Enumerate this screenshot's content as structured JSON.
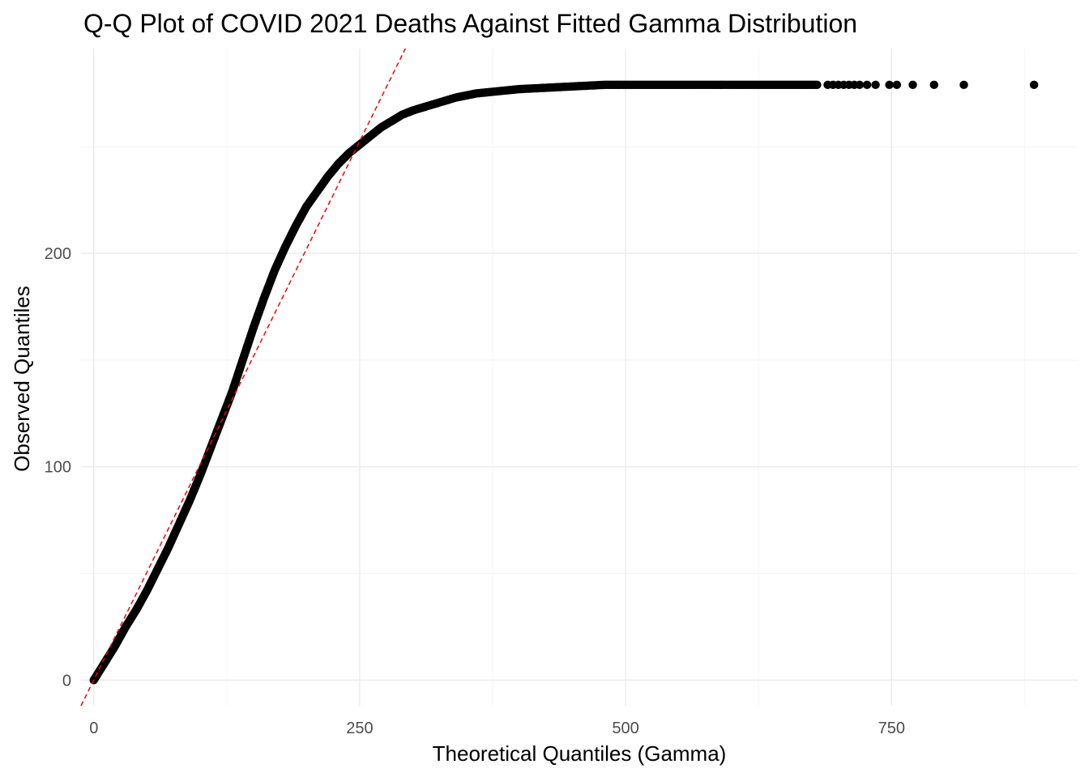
{
  "chart_data": {
    "type": "scatter",
    "title": "Q-Q Plot of COVID 2021 Deaths Against Fitted Gamma Distribution",
    "xlabel": "Theoretical Quantiles (Gamma)",
    "ylabel": "Observed Quantiles",
    "xlim": [
      -12,
      925
    ],
    "ylim": [
      -12,
      296
    ],
    "x_ticks": [
      0,
      250,
      500,
      750
    ],
    "x_tick_labels": [
      "0",
      "250",
      "500",
      "750"
    ],
    "x_minor_ticks": [
      125,
      375,
      625,
      875
    ],
    "y_ticks": [
      0,
      100,
      200
    ],
    "y_tick_labels": [
      "0",
      "100",
      "200"
    ],
    "y_minor_ticks": [
      50,
      150,
      250
    ],
    "grid": true,
    "legend": "none",
    "theme": "minimal",
    "series": [
      {
        "kind": "points",
        "color": "#000000",
        "curve": [
          [
            0,
            0
          ],
          [
            10,
            8
          ],
          [
            20,
            16
          ],
          [
            30,
            25
          ],
          [
            40,
            33
          ],
          [
            50,
            42
          ],
          [
            60,
            52
          ],
          [
            70,
            62
          ],
          [
            80,
            73
          ],
          [
            90,
            84
          ],
          [
            100,
            96
          ],
          [
            110,
            109
          ],
          [
            120,
            122
          ],
          [
            130,
            135
          ],
          [
            140,
            150
          ],
          [
            150,
            165
          ],
          [
            160,
            179
          ],
          [
            170,
            192
          ],
          [
            180,
            203
          ],
          [
            190,
            213
          ],
          [
            200,
            222
          ],
          [
            210,
            229
          ],
          [
            220,
            236
          ],
          [
            230,
            242
          ],
          [
            240,
            247
          ],
          [
            250,
            251
          ],
          [
            260,
            255
          ],
          [
            270,
            259
          ],
          [
            280,
            262
          ],
          [
            290,
            265
          ],
          [
            300,
            267
          ],
          [
            320,
            270
          ],
          [
            340,
            273
          ],
          [
            360,
            275
          ],
          [
            380,
            276
          ],
          [
            400,
            277
          ],
          [
            440,
            278
          ],
          [
            480,
            279
          ],
          [
            520,
            279
          ],
          [
            560,
            279
          ],
          [
            620,
            279
          ],
          [
            680,
            279
          ]
        ],
        "sparse_points": [
          [
            690,
            279
          ],
          [
            695,
            279
          ],
          [
            700,
            279
          ],
          [
            705,
            279
          ],
          [
            710,
            279
          ],
          [
            715,
            279
          ],
          [
            720,
            279
          ],
          [
            727,
            279
          ],
          [
            735,
            279
          ],
          [
            748,
            279
          ],
          [
            755,
            279
          ],
          [
            770,
            279
          ],
          [
            790,
            279
          ],
          [
            818,
            279
          ],
          [
            884,
            279
          ]
        ]
      },
      {
        "kind": "reference-line",
        "style": "dashed",
        "color": "#ff0000",
        "from": [
          -12,
          -12
        ],
        "to": [
          293,
          296
        ]
      }
    ]
  }
}
